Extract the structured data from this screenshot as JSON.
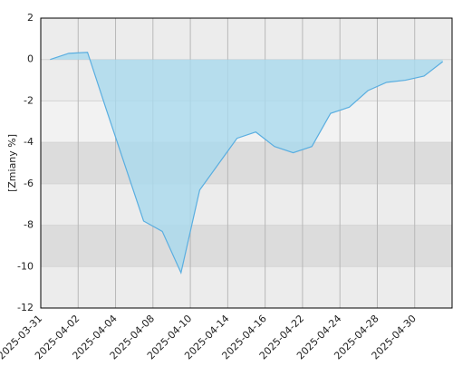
{
  "chart_data": {
    "type": "area",
    "y_label": "[Zmiany %]",
    "categories": [
      "2025-03-31",
      null,
      "2025-04-02",
      null,
      "2025-04-04",
      null,
      "2025-04-08",
      null,
      "2025-04-10",
      null,
      "2025-04-14",
      null,
      "2025-04-16",
      null,
      "2025-04-22",
      null,
      "2025-04-24",
      null,
      "2025-04-28",
      null,
      "2025-04-30",
      null
    ],
    "values": [
      0,
      0.3,
      0.35,
      -2.4,
      -5.1,
      -7.8,
      -8.3,
      -10.3,
      -6.3,
      -5.05,
      -3.8,
      -3.5,
      -4.2,
      -4.5,
      -4.2,
      -2.6,
      -2.3,
      -1.5,
      -1.1,
      -1.0,
      -0.8,
      -0.1
    ],
    "color": "#5aaee0",
    "ylim": [
      -12,
      2
    ],
    "yticks": [
      -12,
      -10,
      -8,
      -6,
      -4,
      -2,
      0,
      2
    ],
    "grid": true
  }
}
